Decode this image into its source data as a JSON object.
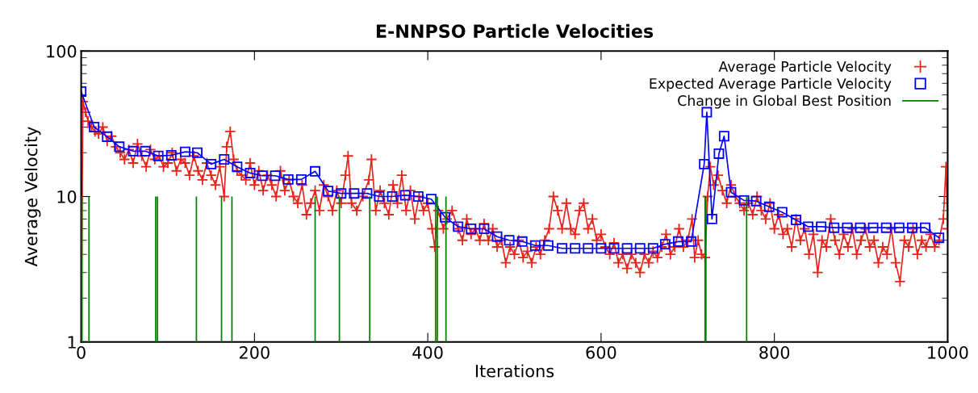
{
  "chart_data": {
    "type": "line",
    "title": "E-NNPSO Particle Velocities",
    "xlabel": "Iterations",
    "ylabel": "Average Velocity",
    "xlim": [
      0,
      1000
    ],
    "xticks": [
      0,
      200,
      400,
      600,
      800,
      1000
    ],
    "ylim": [
      1,
      100
    ],
    "yticks": [
      1,
      10,
      100
    ],
    "log": "y",
    "grid": false,
    "legend": "top right",
    "series": [
      {
        "name": "Average Particle Velocity",
        "marker": "cross",
        "color": "#e8231a",
        "x": [
          0,
          2,
          5,
          8,
          12,
          16,
          20,
          25,
          30,
          35,
          40,
          45,
          50,
          55,
          60,
          65,
          70,
          75,
          80,
          85,
          90,
          95,
          100,
          105,
          110,
          115,
          120,
          125,
          130,
          135,
          140,
          145,
          150,
          155,
          160,
          165,
          168,
          172,
          176,
          180,
          185,
          190,
          195,
          200,
          205,
          210,
          215,
          220,
          225,
          230,
          235,
          240,
          245,
          250,
          255,
          260,
          265,
          270,
          275,
          280,
          285,
          290,
          295,
          300,
          305,
          308,
          312,
          318,
          325,
          332,
          335,
          340,
          345,
          350,
          355,
          360,
          365,
          370,
          375,
          380,
          385,
          390,
          395,
          400,
          405,
          408,
          412,
          418,
          422,
          428,
          435,
          440,
          445,
          450,
          455,
          460,
          465,
          470,
          475,
          480,
          485,
          490,
          495,
          500,
          505,
          510,
          515,
          520,
          525,
          530,
          535,
          540,
          545,
          550,
          555,
          560,
          565,
          570,
          575,
          580,
          585,
          590,
          595,
          600,
          605,
          610,
          615,
          620,
          625,
          630,
          635,
          640,
          645,
          650,
          655,
          660,
          665,
          670,
          675,
          680,
          685,
          690,
          695,
          700,
          705,
          708,
          712,
          716,
          720,
          723,
          726,
          730,
          735,
          740,
          745,
          750,
          755,
          760,
          765,
          770,
          775,
          780,
          785,
          790,
          795,
          800,
          805,
          810,
          815,
          820,
          825,
          830,
          835,
          840,
          845,
          850,
          855,
          860,
          865,
          870,
          875,
          880,
          885,
          890,
          895,
          900,
          905,
          910,
          915,
          920,
          925,
          930,
          935,
          940,
          945,
          950,
          955,
          960,
          965,
          970,
          975,
          980,
          985,
          990,
          995,
          998,
          1000
        ],
        "values": [
          1,
          45,
          38,
          33,
          30,
          28,
          27,
          30,
          24,
          26,
          22,
          20,
          18,
          21,
          17,
          23,
          19,
          16,
          21,
          18,
          19,
          16,
          17,
          20,
          15,
          18,
          17,
          14,
          19,
          15,
          13,
          17,
          14,
          12,
          16,
          10,
          22,
          28,
          18,
          15,
          14,
          13,
          17,
          12,
          15,
          11,
          14,
          12,
          10,
          15,
          11,
          13,
          10,
          9,
          12,
          7.5,
          9,
          11,
          8,
          12,
          10,
          8,
          11,
          9,
          14,
          19,
          9,
          8,
          10,
          13,
          18,
          8,
          11,
          9,
          7.5,
          12,
          9,
          14,
          8,
          11,
          7,
          10,
          8,
          9,
          6,
          4.5,
          8,
          6,
          7,
          8,
          6,
          5,
          7,
          5.5,
          6,
          5,
          6.5,
          5,
          6,
          4.5,
          5,
          3.5,
          4.5,
          4,
          5,
          3.8,
          4.2,
          3.5,
          4.5,
          4,
          5,
          6,
          10,
          8,
          6,
          9,
          6,
          5.5,
          8,
          9,
          6,
          7,
          5,
          5.5,
          4.5,
          4,
          4.8,
          3.5,
          4,
          3.2,
          4,
          3.5,
          3,
          4,
          3.5,
          4.2,
          3.8,
          4.5,
          5.5,
          4,
          4.5,
          6,
          4.5,
          5,
          7,
          3.8,
          5,
          4,
          3.8,
          10,
          16,
          12,
          14,
          11,
          9,
          12,
          10,
          9,
          8,
          9,
          7.5,
          10,
          8,
          7,
          9,
          6,
          7.5,
          5.5,
          6,
          4.5,
          7,
          5,
          6,
          4,
          5.5,
          3,
          5,
          4.5,
          7,
          5,
          4,
          5.5,
          4.5,
          6,
          4,
          5,
          6,
          4.5,
          5,
          3.5,
          4.5,
          4,
          6,
          3.5,
          2.6,
          5,
          4.5,
          6,
          4,
          5,
          4.5,
          5.5,
          4.5,
          5,
          7,
          16,
          6
        ]
      },
      {
        "name": "Expected Average Particle Velocity",
        "marker": "square",
        "color": "#0000ff",
        "x": [
          0,
          15,
          30,
          44,
          60,
          74,
          89,
          104,
          120,
          134,
          150,
          165,
          180,
          195,
          209,
          224,
          239,
          254,
          270,
          285,
          300,
          315,
          330,
          344,
          359,
          374,
          389,
          404,
          420,
          435,
          450,
          465,
          480,
          494,
          509,
          524,
          539,
          555,
          570,
          585,
          600,
          615,
          630,
          645,
          660,
          674,
          689,
          704,
          719,
          722,
          728,
          736,
          742,
          750,
          765,
          779,
          794,
          809,
          825,
          839,
          854,
          869,
          884,
          899,
          914,
          929,
          944,
          959,
          974,
          990
        ],
        "values": [
          52.7,
          30,
          25.8,
          22,
          20.5,
          20.5,
          19,
          19.2,
          20.3,
          20,
          16.7,
          18,
          16,
          14.5,
          13.9,
          13.9,
          13.1,
          13.1,
          14.9,
          10.9,
          10.5,
          10.5,
          10.5,
          10,
          10,
          10.2,
          10,
          9.6,
          7.2,
          6.2,
          6,
          6,
          5.3,
          5,
          4.9,
          4.6,
          4.6,
          4.4,
          4.4,
          4.4,
          4.4,
          4.4,
          4.4,
          4.4,
          4.4,
          4.7,
          4.9,
          4.9,
          16.7,
          38,
          7,
          19.7,
          26,
          10.7,
          9.4,
          9.3,
          8.5,
          7.8,
          6.9,
          6.2,
          6.2,
          6.1,
          6.1,
          6.1,
          6.1,
          6.1,
          6.1,
          6.1,
          6.1,
          5.2
        ]
      },
      {
        "name": "Change in Global Best Position",
        "type": "bar",
        "color": "#008000",
        "x": [
          1,
          9,
          86,
          88,
          133,
          162,
          174,
          270,
          298,
          333,
          409,
          411,
          421,
          720,
          721,
          768
        ],
        "values": [
          10,
          10,
          10,
          10,
          10,
          10,
          10,
          10,
          10,
          10,
          10,
          10,
          10,
          10,
          10,
          10
        ]
      }
    ]
  }
}
